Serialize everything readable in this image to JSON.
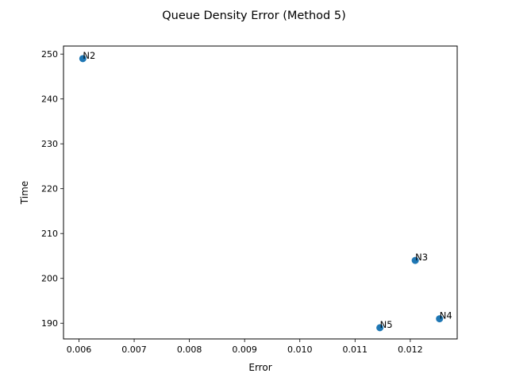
{
  "chart_data": {
    "type": "scatter",
    "title": "Queue Density Error (Method 5)",
    "xlabel": "Error",
    "ylabel": "Time",
    "xlim": [
      0.00572,
      0.01285
    ],
    "ylim": [
      186.5,
      251.8
    ],
    "xticks": [
      0.006,
      0.007,
      0.008,
      0.009,
      0.01,
      0.011,
      0.012
    ],
    "xtick_labels": [
      "0.006",
      "0.007",
      "0.008",
      "0.009",
      "0.010",
      "0.011",
      "0.012"
    ],
    "yticks": [
      190,
      200,
      210,
      220,
      230,
      240,
      250
    ],
    "ytick_labels": [
      "190",
      "200",
      "210",
      "220",
      "230",
      "240",
      "250"
    ],
    "grid": false,
    "legend": null,
    "marker_color": "#1f77b4",
    "points": [
      {
        "label": "N2",
        "x": 0.00607,
        "y": 249
      },
      {
        "label": "N3",
        "x": 0.01209,
        "y": 204
      },
      {
        "label": "N4",
        "x": 0.01253,
        "y": 191
      },
      {
        "label": "N5",
        "x": 0.01145,
        "y": 189
      }
    ]
  }
}
